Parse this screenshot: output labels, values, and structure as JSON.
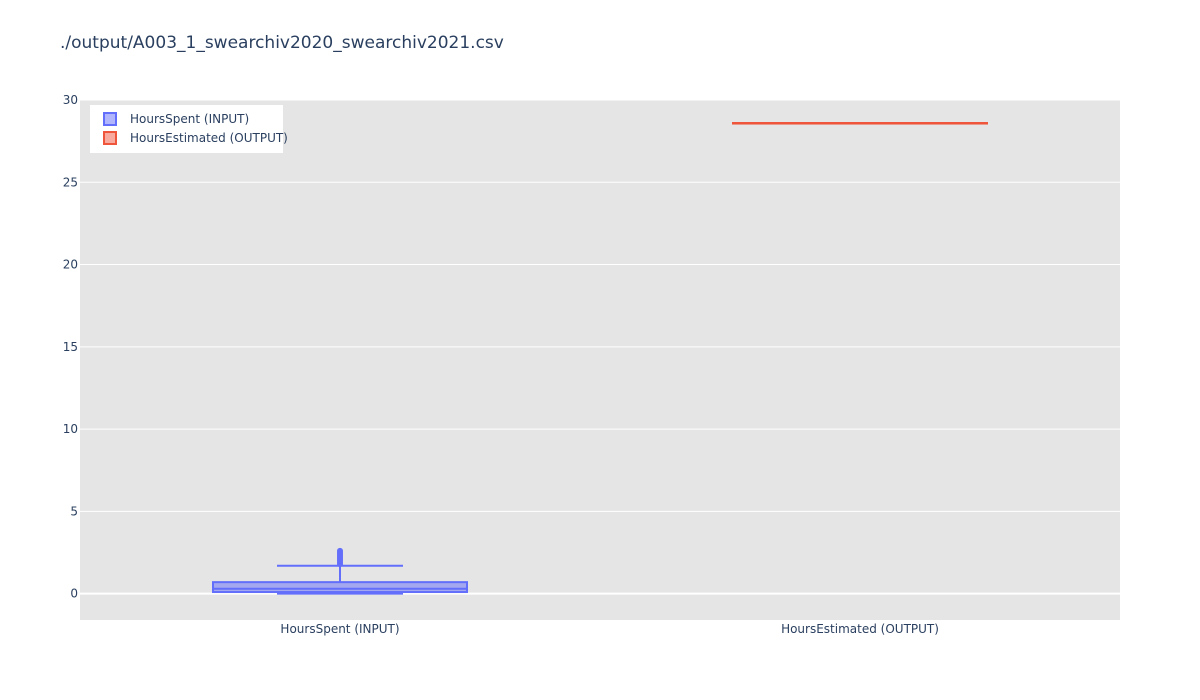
{
  "chart_data": {
    "type": "box",
    "title": "./output/A003_1_swearchiv2020_swearchiv2021.csv",
    "xlabel": "",
    "ylabel": "",
    "ylim": [
      -1.6,
      30
    ],
    "yticks": [
      0,
      5,
      10,
      15,
      20,
      25,
      30
    ],
    "grid": true,
    "legend_position": "top-left",
    "categories": [
      "HoursSpent (INPUT)",
      "HoursEstimated (OUTPUT)"
    ],
    "series": [
      {
        "name": "HoursSpent (INPUT)",
        "category": "HoursSpent (INPUT)",
        "color": "#636efa",
        "min": 0.0,
        "q1": 0.1,
        "median": 0.3,
        "q3": 0.7,
        "upper_fence": 1.7,
        "outliers": [
          1.8,
          1.9,
          2.0,
          2.1,
          2.2,
          2.3,
          2.4,
          2.5,
          2.6
        ]
      },
      {
        "name": "HoursEstimated (OUTPUT)",
        "category": "HoursEstimated (OUTPUT)",
        "color": "#ef553b",
        "min": 28.6,
        "q1": 28.6,
        "median": 28.6,
        "q3": 28.6,
        "upper_fence": 28.6,
        "outliers": []
      }
    ]
  }
}
